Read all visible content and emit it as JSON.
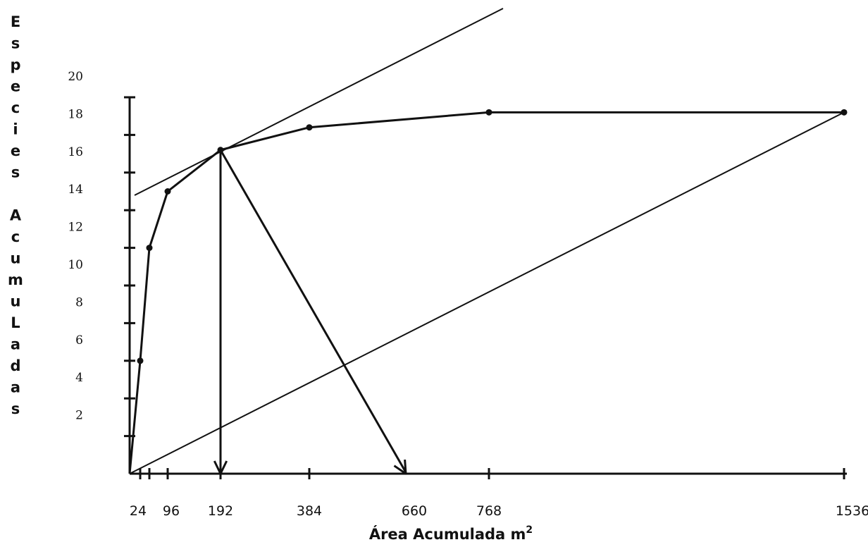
{
  "chart_data": {
    "type": "line",
    "title": "",
    "xlabel": "Área Acumulada m",
    "xlabel_superscript": "2",
    "ylabel": "Especies Acumuladas",
    "ylabel_letters": [
      "E",
      "s",
      "p",
      "e",
      "c",
      "i",
      "e",
      "s",
      "",
      "A",
      "c",
      "u",
      "m",
      "u",
      "L",
      "a",
      "d",
      "a",
      "s"
    ],
    "x_ticks": [
      24,
      96,
      192,
      384,
      660,
      768,
      1536
    ],
    "x_tick_labels": [
      "24",
      "96",
      "192",
      "384",
      "660",
      "768",
      "1536"
    ],
    "x_minor_ticks": [
      24,
      48,
      96,
      192,
      384,
      768,
      1536
    ],
    "y_ticks": [
      2,
      4,
      6,
      8,
      10,
      12,
      14,
      16,
      18,
      20
    ],
    "y_tick_labels": [
      "2",
      "4",
      "6",
      "8",
      "10",
      "12",
      "14",
      "16",
      "18",
      "20"
    ],
    "xlim": [
      0,
      1536
    ],
    "ylim": [
      0,
      20
    ],
    "grid": false,
    "series": [
      {
        "x": [
          0,
          24,
          48,
          96,
          192,
          384,
          768,
          1536
        ],
        "y": [
          0,
          6,
          12,
          15,
          17.2,
          18.4,
          19.2,
          19.2
        ],
        "markers": [
          24,
          48,
          96,
          192,
          384,
          768,
          1536
        ]
      }
    ],
    "annotations": {
      "tangent_line": {
        "x": [
          0,
          800
        ],
        "y": [
          15,
          25
        ]
      },
      "diagonal_line": {
        "x": [
          0,
          1536
        ],
        "y": [
          0,
          19.2
        ]
      },
      "arrows": [
        {
          "from": [
            192,
            17.2
          ],
          "to": [
            192,
            0
          ]
        },
        {
          "from": [
            192,
            17.2
          ],
          "to": [
            595,
            0
          ]
        }
      ]
    }
  }
}
